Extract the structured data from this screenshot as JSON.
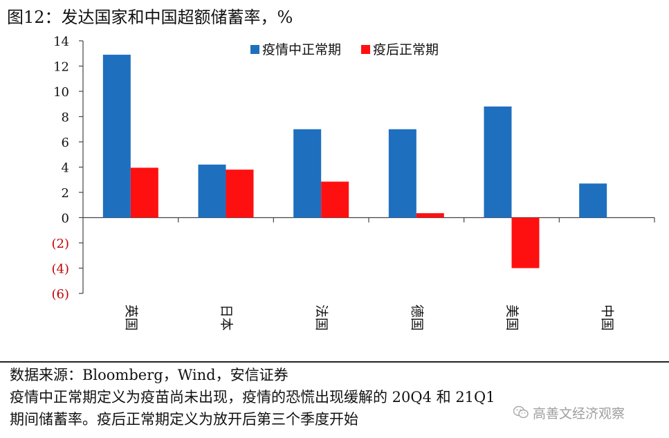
{
  "title": "图12：发达国家和中国超额储蓄率，%",
  "notes": {
    "source": "数据来源：Bloomberg，Wind，安信证券",
    "line2": "疫情中正常期定义为疫苗尚未出现，疫情的恐慌出现缓解的 20Q4 和 21Q1",
    "line3": "期间储蓄率。疫后正常期定义为放开后第三个季度开始"
  },
  "watermark": {
    "text": "高善文经济观察",
    "icon": "wechat-icon"
  },
  "chart_data": {
    "type": "bar",
    "categories": [
      "英国",
      "日本",
      "法国",
      "德国",
      "美国",
      "中国"
    ],
    "series": [
      {
        "name": "疫情中正常期",
        "color": "#1f6fbf",
        "values": [
          12.9,
          4.2,
          7.0,
          7.0,
          8.8,
          2.7
        ]
      },
      {
        "name": "疫后正常期",
        "color": "#ff1010",
        "values": [
          3.95,
          3.8,
          2.85,
          0.35,
          -4.0,
          null
        ]
      }
    ],
    "ylim": [
      -6,
      14
    ],
    "yticks": [
      14,
      12,
      10,
      8,
      6,
      4,
      2,
      0,
      -2,
      -4,
      -6
    ],
    "ytick_labels": [
      "14",
      "12",
      "10",
      "8",
      "6",
      "4",
      "2",
      "0",
      "(2)",
      "(4)",
      "(6)"
    ],
    "negative_tick_color": "#c00000",
    "legend_position": "top-center",
    "grid": false
  }
}
